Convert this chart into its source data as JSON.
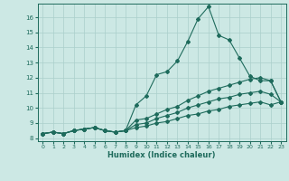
{
  "xlabel": "Humidex (Indice chaleur)",
  "xlim": [
    -0.5,
    23.5
  ],
  "ylim": [
    7.8,
    16.9
  ],
  "yticks": [
    8,
    9,
    10,
    11,
    12,
    13,
    14,
    15,
    16
  ],
  "xticks": [
    0,
    1,
    2,
    3,
    4,
    5,
    6,
    7,
    8,
    9,
    10,
    11,
    12,
    13,
    14,
    15,
    16,
    17,
    18,
    19,
    20,
    21,
    22,
    23
  ],
  "bg_color": "#cce8e4",
  "line_color": "#1e6b5c",
  "grid_color": "#aacfcb",
  "line1_x": [
    0,
    1,
    2,
    3,
    4,
    5,
    6,
    7,
    8,
    9,
    10,
    11,
    12,
    13,
    14,
    15,
    16,
    17,
    18,
    19,
    20,
    21,
    22,
    23
  ],
  "line1_y": [
    8.3,
    8.4,
    8.3,
    8.5,
    8.6,
    8.7,
    8.5,
    8.4,
    8.5,
    10.2,
    10.8,
    12.2,
    12.4,
    13.1,
    14.4,
    15.9,
    16.7,
    14.8,
    14.5,
    13.3,
    12.1,
    11.8,
    11.8,
    10.4
  ],
  "line2_x": [
    0,
    1,
    2,
    3,
    4,
    5,
    6,
    7,
    8,
    9,
    10,
    11,
    12,
    13,
    14,
    15,
    16,
    17,
    18,
    19,
    20,
    21,
    22,
    23
  ],
  "line2_y": [
    8.3,
    8.4,
    8.3,
    8.5,
    8.6,
    8.7,
    8.5,
    8.4,
    8.5,
    9.2,
    9.3,
    9.6,
    9.9,
    10.1,
    10.5,
    10.8,
    11.1,
    11.3,
    11.5,
    11.7,
    11.9,
    12.0,
    11.8,
    10.4
  ],
  "line3_x": [
    0,
    1,
    2,
    3,
    4,
    5,
    6,
    7,
    8,
    9,
    10,
    11,
    12,
    13,
    14,
    15,
    16,
    17,
    18,
    19,
    20,
    21,
    22,
    23
  ],
  "line3_y": [
    8.3,
    8.4,
    8.3,
    8.5,
    8.6,
    8.7,
    8.5,
    8.4,
    8.5,
    8.9,
    9.0,
    9.3,
    9.5,
    9.7,
    10.0,
    10.2,
    10.4,
    10.6,
    10.7,
    10.9,
    11.0,
    11.1,
    10.9,
    10.4
  ],
  "line4_x": [
    0,
    1,
    2,
    3,
    4,
    5,
    6,
    7,
    8,
    9,
    10,
    11,
    12,
    13,
    14,
    15,
    16,
    17,
    18,
    19,
    20,
    21,
    22,
    23
  ],
  "line4_y": [
    8.3,
    8.4,
    8.3,
    8.5,
    8.6,
    8.7,
    8.5,
    8.4,
    8.5,
    8.7,
    8.8,
    9.0,
    9.1,
    9.3,
    9.5,
    9.6,
    9.8,
    9.9,
    10.1,
    10.2,
    10.3,
    10.4,
    10.2,
    10.4
  ]
}
